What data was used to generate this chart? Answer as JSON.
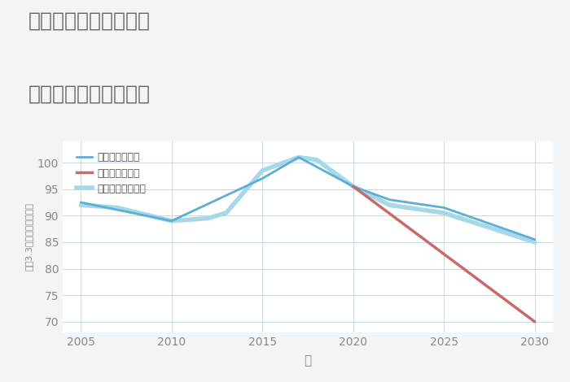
{
  "title_line1": "愛知県安城市木戸町の",
  "title_line2": "中古戸建ての価格推移",
  "xlabel": "年",
  "ylabel": "坪（3.3㎡）単価（万円）",
  "background_color": "#f2f5f8",
  "plot_bg_color": "#ffffff",
  "grid_color": "#c8d8e8",
  "good_scenario": {
    "label": "グッドシナリオ",
    "color": "#5bafd6",
    "linewidth": 2.0,
    "x": [
      2005,
      2010,
      2015,
      2017,
      2020,
      2022,
      2025,
      2030
    ],
    "y": [
      92.5,
      89.0,
      97.0,
      101.0,
      95.5,
      93.0,
      91.5,
      85.5
    ]
  },
  "bad_scenario": {
    "label": "バッドシナリオ",
    "color": "#c96a6a",
    "linewidth": 2.5,
    "x": [
      2020,
      2030
    ],
    "y": [
      95.5,
      70.0
    ]
  },
  "normal_scenario": {
    "label": "ノーマルシナリオ",
    "color": "#a8d8e8",
    "linewidth": 4.0,
    "x": [
      2005,
      2007,
      2010,
      2012,
      2013,
      2015,
      2017,
      2018,
      2020,
      2022,
      2025,
      2030
    ],
    "y": [
      92.0,
      91.5,
      89.0,
      89.5,
      90.5,
      98.5,
      101.0,
      100.5,
      95.5,
      92.0,
      90.5,
      85.0
    ]
  },
  "xlim": [
    2004,
    2031
  ],
  "ylim": [
    68,
    104
  ],
  "xticks": [
    2005,
    2010,
    2015,
    2020,
    2025,
    2030
  ],
  "yticks": [
    70,
    75,
    80,
    85,
    90,
    95,
    100
  ],
  "title_color": "#666666",
  "title_fontsize": 18,
  "tick_color": "#888888",
  "legend_text_color": "#555555",
  "legend_fontsize": 9
}
